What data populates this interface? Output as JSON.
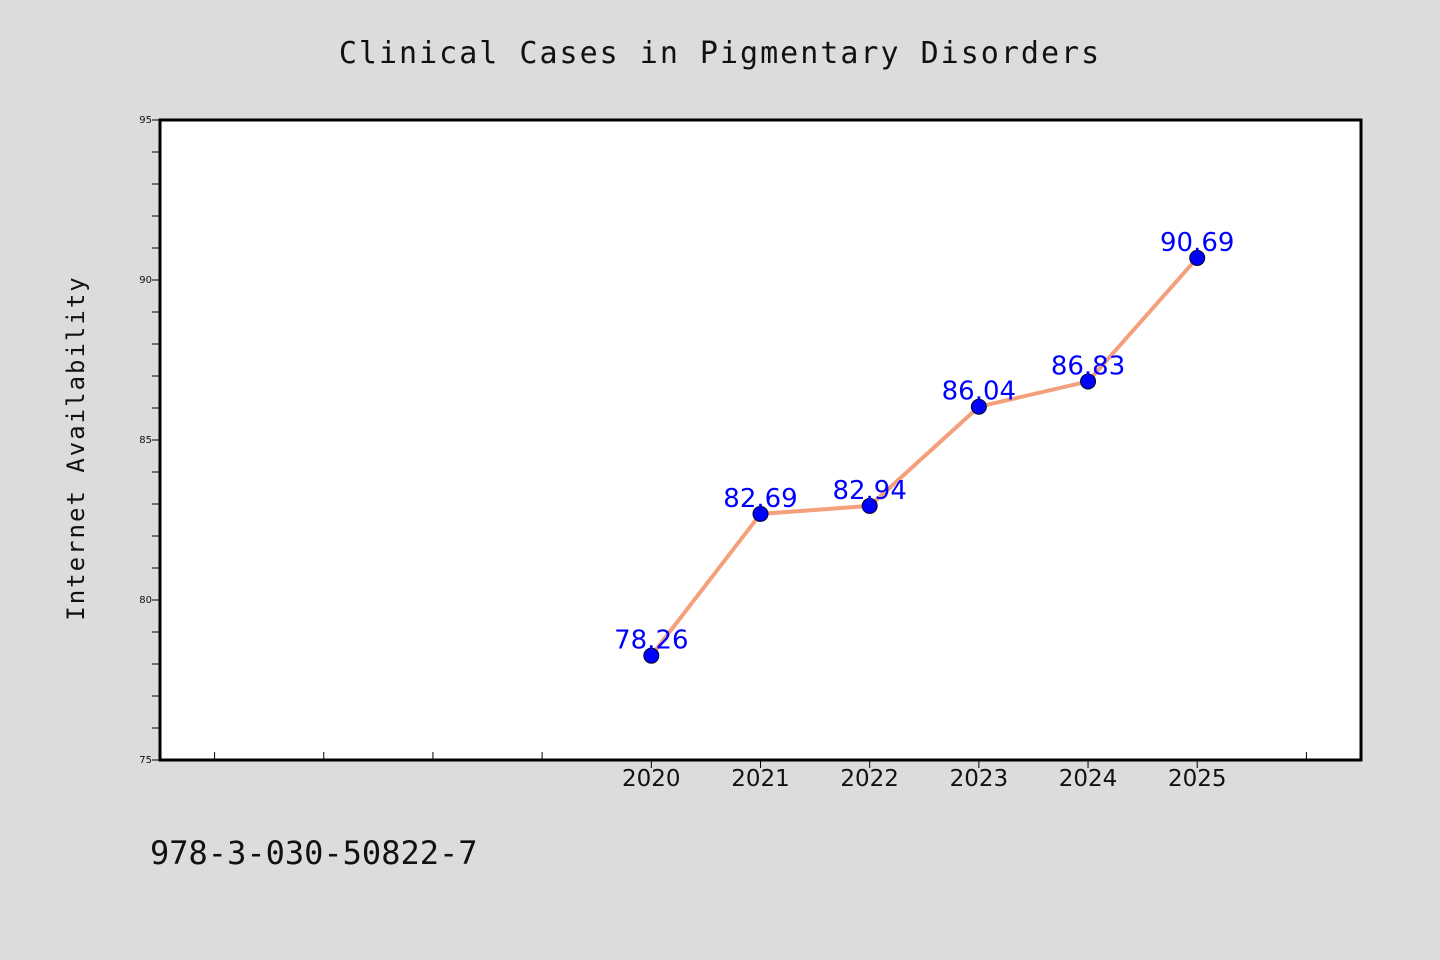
{
  "chart_data": {
    "type": "line",
    "title": "Clinical Cases in Pigmentary Disorders",
    "xlabel": "",
    "ylabel": "Internet Availability",
    "x": [
      2020,
      2021,
      2022,
      2023,
      2024,
      2025
    ],
    "x_tick_labels": [
      "2020",
      "2021",
      "2022",
      "2023",
      "2024",
      "2025"
    ],
    "xlim": [
      2015.5,
      2026.5
    ],
    "ylim": [
      75,
      95
    ],
    "y_ticks": [
      75,
      80,
      85,
      90,
      95
    ],
    "y_tick_labels": [
      "75",
      "80",
      "85",
      "90",
      "95"
    ],
    "series": [
      {
        "values": [
          78.26,
          82.69,
          82.94,
          86.04,
          86.83,
          90.69
        ],
        "labels": [
          "78.26",
          "82.69",
          "82.94",
          "86.04",
          "86.83",
          "90.69"
        ],
        "line_color": "#f4a07c",
        "marker_color": "#0000ff"
      }
    ],
    "grid": false,
    "legend": "none"
  },
  "footer": {
    "isbn": "978-3-030-50822-7"
  },
  "colors": {
    "background": "#dcdcdc",
    "plot_area": "#ffffff",
    "line": "#f4a07c",
    "marker": "#0000ff",
    "data_label": "#0000ff"
  }
}
